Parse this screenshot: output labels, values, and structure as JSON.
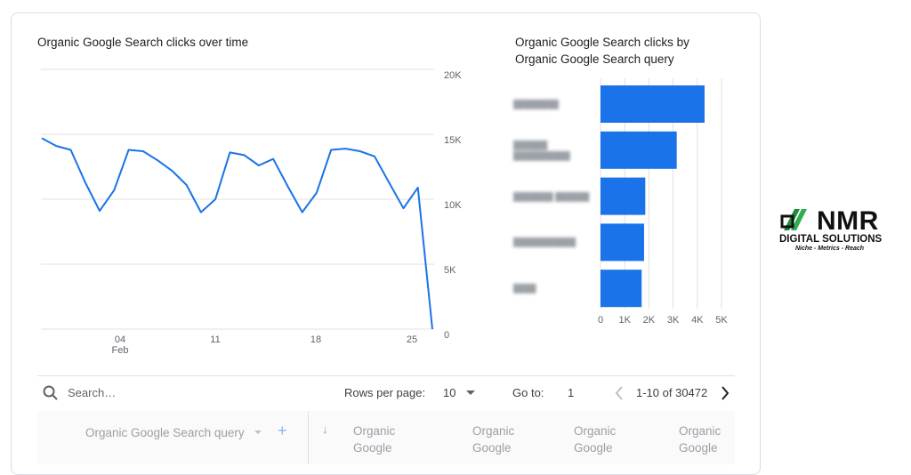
{
  "line_chart": {
    "title": "Organic Google Search clicks over time",
    "y_ticks": [
      "20K",
      "15K",
      "10K",
      "5K",
      "0"
    ],
    "x_ticks": [
      "04",
      "11",
      "18",
      "25"
    ],
    "x_sub": "Feb"
  },
  "bar_chart": {
    "title_line1": "Organic Google Search clicks by",
    "title_line2": "Organic Google Search query",
    "x_ticks": [
      "0",
      "1K",
      "2K",
      "3K",
      "4K",
      "5K"
    ],
    "blurred_labels": [
      "████████",
      "██████ ██████████",
      "███████ ██████",
      "███████████",
      "████"
    ]
  },
  "chart_data": [
    {
      "type": "line",
      "title": "Organic Google Search clicks over time",
      "xlabel": "",
      "ylabel": "",
      "ylim": [
        0,
        20000
      ],
      "x_ticks": [
        "04 Feb",
        "11",
        "18",
        "25"
      ],
      "series": [
        {
          "values": [
            14700,
            14100,
            13800,
            11300,
            9100,
            10700,
            13800,
            13700,
            13000,
            12200,
            11100,
            9000,
            10000,
            13600,
            13400,
            12600,
            13100,
            11000,
            9000,
            10500,
            13800,
            13900,
            13700,
            13300,
            11300,
            9300,
            10900,
            0
          ]
        }
      ],
      "color": "#1a73e8",
      "grid": true
    },
    {
      "type": "bar",
      "orientation": "horizontal",
      "title": "Organic Google Search clicks by Organic Google Search query",
      "categories": [
        "(blurred)",
        "(blurred)",
        "(blurred)",
        "(blurred)",
        "(blurred)"
      ],
      "values": [
        4300,
        3150,
        1850,
        1800,
        1700
      ],
      "xlim": [
        0,
        5000
      ],
      "color": "#1a73e8"
    }
  ],
  "toolbar": {
    "search_placeholder": "Search…",
    "rows_label": "Rows per page:",
    "rows_value": "10",
    "goto_label": "Go to:",
    "goto_value": "1",
    "range_text": "1-10 of 30472"
  },
  "table_header": {
    "dimension": "Organic Google Search query",
    "metric1": "Organic",
    "metric1b": "Google",
    "metric2": "Organic",
    "metric2b": "Google",
    "metric3": "Organic",
    "metric3b": "Google",
    "metric4": "Organic",
    "metric4b": "Google"
  },
  "logo": {
    "name": "NMR",
    "sub": "DIGITAL SOLUTIONS",
    "tagline": "Niche - Metrics - Reach"
  }
}
